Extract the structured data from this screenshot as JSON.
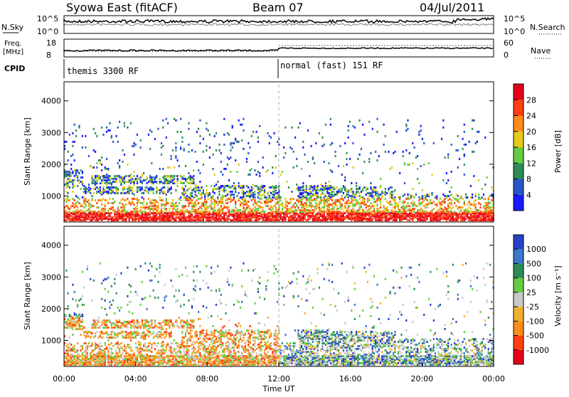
{
  "header": {
    "title": "Syowa East (fitACF)",
    "beam": "Beam 07",
    "date": "04/Jul/2011"
  },
  "top_panels": {
    "nsky_label": "N.Sky",
    "nsky_ticks": [
      "10^5",
      "10^0"
    ],
    "nsearch_label": "N.Search",
    "nsearch_ticks": [
      "10^5",
      "10^0"
    ],
    "freq_label_1": "Freq.",
    "freq_label_2": "[MHz]",
    "freq_ticks": [
      "18",
      "8"
    ],
    "nave_label": "Nave",
    "nave_ticks": [
      "60",
      "0"
    ],
    "cpid_label": "CPID",
    "cpid_segments": [
      {
        "label": "themis 3300 RF",
        "start_hour": 0
      },
      {
        "label": "normal (fast) 151 RF",
        "start_hour": 12
      }
    ]
  },
  "chart_data": [
    {
      "type": "heatmap",
      "name": "power",
      "ylabel": "Slant Range [km]",
      "yticks": [
        1000,
        2000,
        3000,
        4000
      ],
      "ylim": [
        180,
        4600
      ],
      "xlim_hours": [
        0,
        24
      ],
      "colorbar_label": "Power [dB]",
      "colorbar_ticks": [
        "4",
        "8",
        "12",
        "16",
        "20",
        "24",
        "28"
      ],
      "colorbar_colors": [
        "#1a1aff",
        "#2a55c8",
        "#2e8b57",
        "#66cc44",
        "#e8c81a",
        "#ff8c1a",
        "#ff4010",
        "#e8001a"
      ]
    },
    {
      "type": "heatmap",
      "name": "velocity",
      "ylabel": "Slant Range [km]",
      "yticks": [
        1000,
        2000,
        3000,
        4000
      ],
      "ylim": [
        180,
        4600
      ],
      "xlim_hours": [
        0,
        24
      ],
      "xlabel": "Time UT",
      "xticks": [
        "00:00",
        "04:00",
        "08:00",
        "12:00",
        "16:00",
        "20:00",
        "00:00"
      ],
      "colorbar_label": "Velocity [m s⁻¹]",
      "colorbar_ticks": [
        "1000",
        "500",
        "100",
        "25",
        "-25",
        "-100",
        "-500",
        "-1000"
      ],
      "colorbar_colors": [
        "#2840c8",
        "#3a78c8",
        "#2e8b57",
        "#66cc44",
        "#c8c8c8",
        "#f0b030",
        "#ff8c1a",
        "#ff4010",
        "#e8001a"
      ]
    }
  ]
}
